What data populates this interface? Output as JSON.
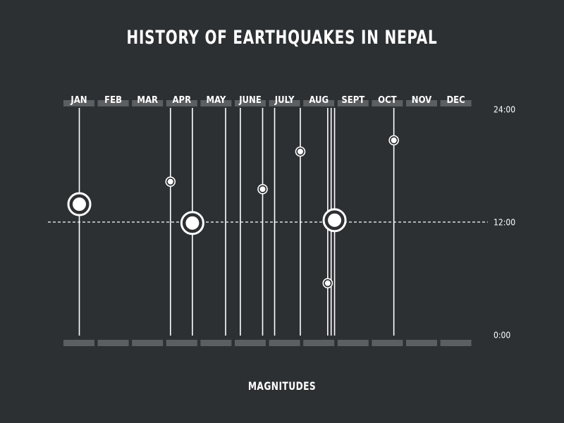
{
  "chart_data": {
    "type": "scatter",
    "title": "HISTORY OF EARTHQUAKES IN NEPAL",
    "footer_label": "MAGNITUDES",
    "x_categories": [
      "JAN",
      "FEB",
      "MAR",
      "APR",
      "MAY",
      "JUNE",
      "JULY",
      "AUG",
      "SEPT",
      "OCT",
      "NOV",
      "DEC"
    ],
    "y_tick_labels": [
      {
        "value": 0,
        "label": "0:00"
      },
      {
        "value": 12,
        "label": "12:00"
      },
      {
        "value": 24,
        "label": "24:00"
      }
    ],
    "y_range": [
      0,
      24
    ],
    "reference_line_y": 12,
    "events": [
      {
        "month_pos": 0.0,
        "hour": 13.9,
        "magnitude": "large"
      },
      {
        "month_pos": 2.66,
        "hour": 16.3,
        "magnitude": "small"
      },
      {
        "month_pos": 3.3,
        "hour": 11.9,
        "magnitude": "large"
      },
      {
        "month_pos": 4.27,
        "hour": null
      },
      {
        "month_pos": 4.7,
        "hour": null
      },
      {
        "month_pos": 5.35,
        "hour": 15.5,
        "magnitude": "small"
      },
      {
        "month_pos": 5.7,
        "hour": null
      },
      {
        "month_pos": 6.45,
        "hour": 19.5,
        "magnitude": "small"
      },
      {
        "month_pos": 7.25,
        "hour": 5.5,
        "magnitude": "small"
      },
      {
        "month_pos": 7.35,
        "hour": null
      },
      {
        "month_pos": 7.45,
        "hour": 12.2,
        "magnitude": "large"
      },
      {
        "month_pos": 9.18,
        "hour": 20.7,
        "magnitude": "small"
      }
    ],
    "colors": {
      "background": "#2d3033",
      "foreground": "#ffffff",
      "band": "#5c5f62"
    }
  }
}
